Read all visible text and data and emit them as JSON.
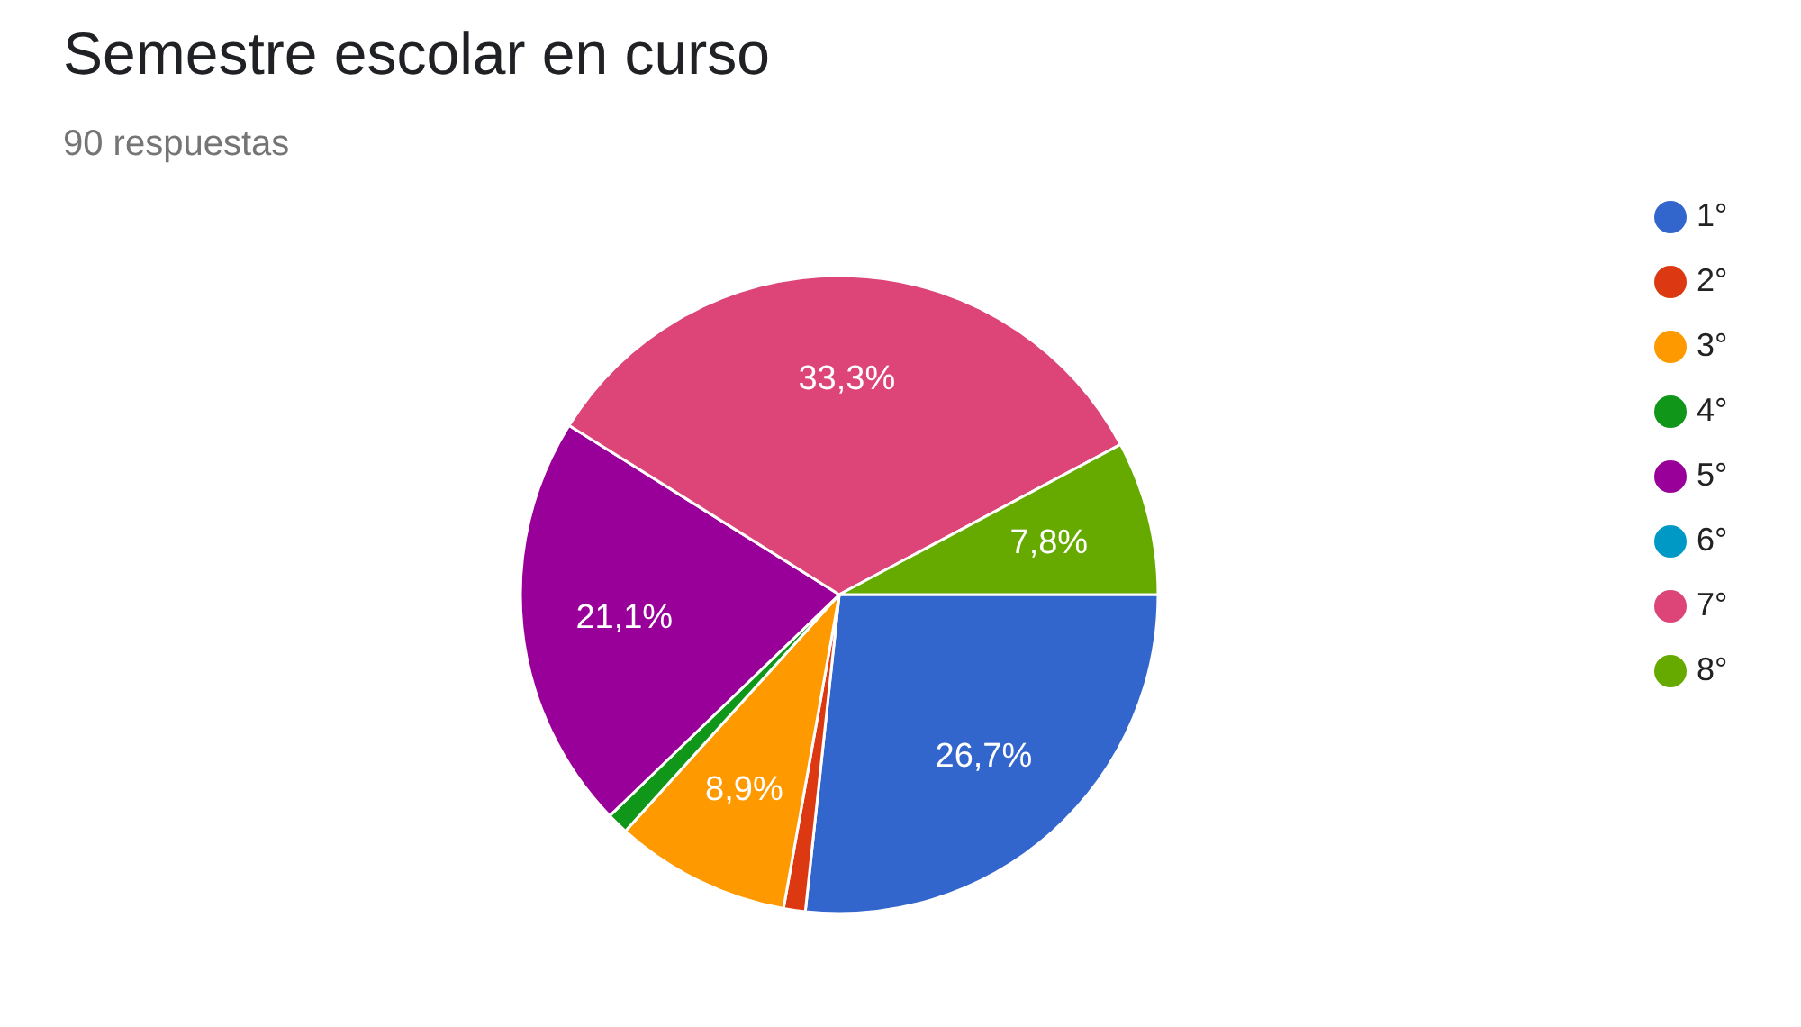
{
  "chart_data": {
    "type": "pie",
    "title": "Semestre escolar en curso",
    "subtitle": "90 respuestas",
    "categories": [
      "1°",
      "2°",
      "3°",
      "4°",
      "5°",
      "6°",
      "7°",
      "8°"
    ],
    "values": [
      26.7,
      1.1,
      8.9,
      1.1,
      21.1,
      0,
      33.3,
      7.8
    ],
    "colors": [
      "#3366cc",
      "#dc3912",
      "#ff9900",
      "#109618",
      "#990099",
      "#0099c6",
      "#dd4477",
      "#66aa00"
    ],
    "value_labels": [
      "26,7%",
      null,
      "8,9%",
      null,
      "21,1%",
      null,
      "33,3%",
      "7,8%"
    ],
    "legend": "right"
  }
}
